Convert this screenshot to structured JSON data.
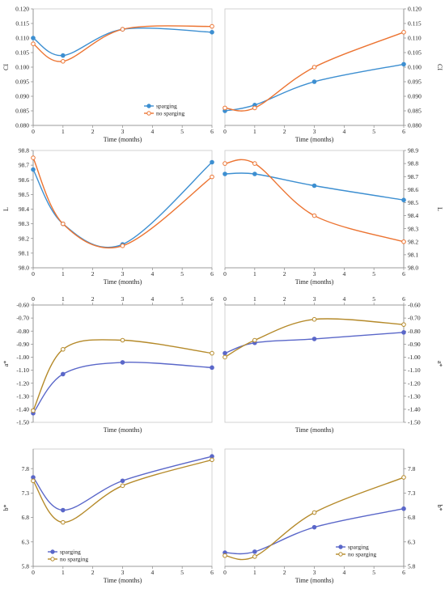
{
  "colors": {
    "sparging_blue": "#3d8fd1",
    "nosparging_orange": "#ec7432",
    "sparging_violet": "#5a67c9",
    "nosparging_olive": "#b58a2a"
  },
  "chart_data": [
    {
      "id": "ci-left",
      "type": "line",
      "ylabel": "CI",
      "xlabel": "Time (months)",
      "ylim": [
        0.08,
        0.12
      ],
      "yticks": [
        "0.080",
        "0.085",
        "0.090",
        "0.095",
        "0.100",
        "0.105",
        "0.110",
        "0.115",
        "0.120"
      ],
      "xlim": [
        0,
        6
      ],
      "xticks": [
        "0",
        "1",
        "2",
        "3",
        "4",
        "5",
        "6"
      ],
      "yaxis_side": "left",
      "xaxis_position": "bottom",
      "grid": false,
      "legend": {
        "placement": "lower-right",
        "entries": [
          "sparging",
          "no sparging"
        ]
      },
      "series": [
        {
          "name": "sparging",
          "color_key": "sparging_blue",
          "marker": "filled",
          "x": [
            0,
            1,
            3,
            6
          ],
          "y": [
            0.11,
            0.104,
            0.113,
            0.112
          ]
        },
        {
          "name": "no sparging",
          "color_key": "nosparging_orange",
          "marker": "open",
          "x": [
            0,
            1,
            3,
            6
          ],
          "y": [
            0.108,
            0.102,
            0.113,
            0.114
          ]
        }
      ]
    },
    {
      "id": "ci-right",
      "type": "line",
      "ylabel": "CI",
      "xlabel": "Time (months)",
      "ylim": [
        0.08,
        0.12
      ],
      "yticks": [
        "0.080",
        "0.085",
        "0.090",
        "0.095",
        "0.100",
        "0.105",
        "0.110",
        "0.115",
        "0.120"
      ],
      "xlim": [
        0,
        6
      ],
      "xticks": [
        "0",
        "1",
        "2",
        "3",
        "4",
        "5",
        "6"
      ],
      "yaxis_side": "right",
      "xaxis_position": "bottom",
      "grid": false,
      "series": [
        {
          "name": "sparging",
          "color_key": "sparging_blue",
          "marker": "filled",
          "x": [
            0,
            1,
            3,
            6
          ],
          "y": [
            0.085,
            0.087,
            0.095,
            0.101
          ]
        },
        {
          "name": "no sparging",
          "color_key": "nosparging_orange",
          "marker": "open",
          "x": [
            0,
            1,
            3,
            6
          ],
          "y": [
            0.086,
            0.086,
            0.1,
            0.112
          ]
        }
      ]
    },
    {
      "id": "l-left",
      "type": "line",
      "ylabel": "L",
      "xlabel": "Time (months)",
      "ylim": [
        98.0,
        98.8
      ],
      "yticks": [
        "98.0",
        "98.1",
        "98.2",
        "98.3",
        "98.4",
        "98.5",
        "98.6",
        "98.7",
        "98.8"
      ],
      "xlim": [
        0,
        6
      ],
      "xticks": [
        "0",
        "1",
        "2",
        "3",
        "4",
        "5",
        "6"
      ],
      "yaxis_side": "left",
      "xaxis_position": "bottom",
      "grid": false,
      "series": [
        {
          "name": "sparging",
          "color_key": "sparging_blue",
          "marker": "filled",
          "x": [
            0,
            1,
            3,
            6
          ],
          "y": [
            98.67,
            98.3,
            98.16,
            98.72
          ]
        },
        {
          "name": "no sparging",
          "color_key": "nosparging_orange",
          "marker": "open",
          "x": [
            0,
            1,
            3,
            6
          ],
          "y": [
            98.75,
            98.3,
            98.15,
            98.62
          ]
        }
      ]
    },
    {
      "id": "l-right",
      "type": "line",
      "ylabel": "L",
      "xlabel": "Time (months)",
      "ylim": [
        98.0,
        98.9
      ],
      "yticks": [
        "98.0",
        "98.1",
        "98.2",
        "98.3",
        "98.4",
        "98.5",
        "98.6",
        "98.7",
        "98.8",
        "98.9"
      ],
      "xlim": [
        0,
        6
      ],
      "xticks": [
        "0",
        "1",
        "2",
        "3",
        "4",
        "5",
        "6"
      ],
      "yaxis_side": "right",
      "xaxis_position": "bottom",
      "grid": false,
      "series": [
        {
          "name": "sparging",
          "color_key": "sparging_blue",
          "marker": "filled",
          "x": [
            0,
            1,
            3,
            6
          ],
          "y": [
            98.72,
            98.72,
            98.63,
            98.52
          ]
        },
        {
          "name": "no sparging",
          "color_key": "nosparging_orange",
          "marker": "open",
          "x": [
            0,
            1,
            3,
            6
          ],
          "y": [
            98.8,
            98.8,
            98.4,
            98.2
          ]
        }
      ]
    },
    {
      "id": "a-left",
      "type": "line",
      "ylabel": "a*",
      "xlabel": "Time (months)",
      "ylim": [
        -1.5,
        -0.6
      ],
      "yticks": [
        "-0.60",
        "-0.70",
        "-0.80",
        "-0.90",
        "-1.00",
        "-1.10",
        "-1.20",
        "-1.30",
        "-1.40",
        "-1.50"
      ],
      "xlim": [
        0,
        6
      ],
      "xticks": [
        "0",
        "1",
        "2",
        "3",
        "4",
        "5",
        "6"
      ],
      "yaxis_side": "left",
      "xaxis_position": "top",
      "grid": false,
      "series": [
        {
          "name": "sparging",
          "color_key": "sparging_violet",
          "marker": "filled",
          "x": [
            0,
            1,
            3,
            6
          ],
          "y": [
            -1.43,
            -1.13,
            -1.04,
            -1.08
          ]
        },
        {
          "name": "no sparging",
          "color_key": "nosparging_olive",
          "marker": "open",
          "x": [
            0,
            1,
            3,
            6
          ],
          "y": [
            -1.41,
            -0.94,
            -0.87,
            -0.97
          ]
        }
      ]
    },
    {
      "id": "a-right",
      "type": "line",
      "ylabel": "a*",
      "xlabel": "Time (months)",
      "ylim": [
        -1.5,
        -0.6
      ],
      "yticks": [
        "-0.60",
        "-0.70",
        "-0.80",
        "-0.90",
        "-1.00",
        "-1.10",
        "-1.20",
        "-1.30",
        "-1.40",
        "-1.50"
      ],
      "xlim": [
        0,
        6
      ],
      "xticks": [
        "0",
        "1",
        "2",
        "3",
        "4",
        "5",
        "6"
      ],
      "yaxis_side": "right",
      "xaxis_position": "top",
      "grid": false,
      "series": [
        {
          "name": "sparging",
          "color_key": "sparging_violet",
          "marker": "filled",
          "x": [
            0,
            1,
            3,
            6
          ],
          "y": [
            -0.97,
            -0.89,
            -0.86,
            -0.81
          ]
        },
        {
          "name": "no sparging",
          "color_key": "nosparging_olive",
          "marker": "open",
          "x": [
            0,
            1,
            3,
            6
          ],
          "y": [
            -1.0,
            -0.87,
            -0.71,
            -0.75
          ]
        }
      ]
    },
    {
      "id": "b-left",
      "type": "line",
      "ylabel": "b*",
      "xlabel": "Time (months)",
      "ylim": [
        5.8,
        8.2
      ],
      "yticks": [
        "5.8",
        "6.3",
        "6.8",
        "7.3",
        "7.8"
      ],
      "xlim": [
        0,
        6
      ],
      "xticks": [
        "0",
        "1",
        "2",
        "3",
        "4",
        "5",
        "6"
      ],
      "yaxis_side": "left",
      "xaxis_position": "bottom",
      "grid": false,
      "legend": {
        "placement": "lower-left",
        "entries": [
          "sparging",
          "no sparging"
        ]
      },
      "series": [
        {
          "name": "sparging",
          "color_key": "sparging_violet",
          "marker": "filled",
          "x": [
            0,
            1,
            3,
            6
          ],
          "y": [
            7.62,
            6.95,
            7.55,
            8.05
          ]
        },
        {
          "name": "no sparging",
          "color_key": "nosparging_olive",
          "marker": "open",
          "x": [
            0,
            1,
            3,
            6
          ],
          "y": [
            7.55,
            6.7,
            7.45,
            7.98
          ]
        }
      ]
    },
    {
      "id": "b-right",
      "type": "line",
      "ylabel": "b*",
      "xlabel": "Time (months)",
      "ylim": [
        5.8,
        8.2
      ],
      "yticks": [
        "5.8",
        "6.3",
        "6.8",
        "7.3",
        "7.8"
      ],
      "xlim": [
        0,
        6
      ],
      "xticks": [
        "0",
        "1",
        "2",
        "3",
        "4",
        "5",
        "6"
      ],
      "yaxis_side": "right",
      "xaxis_position": "bottom",
      "grid": false,
      "legend": {
        "placement": "lower-right",
        "entries": [
          "sparging",
          "no sparging"
        ]
      },
      "series": [
        {
          "name": "sparging",
          "color_key": "sparging_violet",
          "marker": "filled",
          "x": [
            0,
            1,
            3,
            6
          ],
          "y": [
            6.08,
            6.1,
            6.6,
            6.98
          ]
        },
        {
          "name": "no sparging",
          "color_key": "nosparging_olive",
          "marker": "open",
          "x": [
            0,
            1,
            3,
            6
          ],
          "y": [
            6.02,
            6.0,
            6.9,
            7.62
          ]
        }
      ]
    }
  ]
}
